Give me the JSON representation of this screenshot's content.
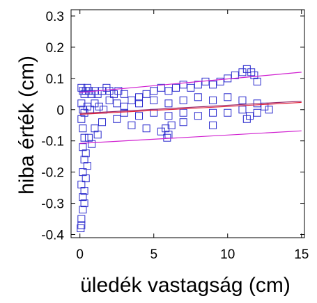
{
  "chart_data": {
    "type": "scatter",
    "xlabel": "üledék vastagság (cm)",
    "ylabel": "hiba érték (cm)",
    "xlim": [
      -0.6,
      15.2
    ],
    "ylim": [
      -0.41,
      0.32
    ],
    "xticks": [
      "0",
      "5",
      "10",
      "15"
    ],
    "yticks": [
      "-0.4",
      "-0.3",
      "-0.2",
      "-0.1",
      "0",
      "0.1",
      "0.2",
      "0.3"
    ],
    "grid": false,
    "series": [
      {
        "marker": "square",
        "color": "#2a2acd",
        "points": [
          [
            0.1,
            0.07
          ],
          [
            0.2,
            0.06
          ],
          [
            0.3,
            0.05
          ],
          [
            0.4,
            0.06
          ],
          [
            0.5,
            0.07
          ],
          [
            0.6,
            0.06
          ],
          [
            0.8,
            0.05
          ],
          [
            1.0,
            0.06
          ],
          [
            1.2,
            0.05
          ],
          [
            1.5,
            0.06
          ],
          [
            1.8,
            0.07
          ],
          [
            2.0,
            0.06
          ],
          [
            2.3,
            0.05
          ],
          [
            2.6,
            0.06
          ],
          [
            3.0,
            0.05
          ],
          [
            0.1,
            0.02
          ],
          [
            0.2,
            0.0
          ],
          [
            0.3,
            -0.01
          ],
          [
            0.5,
            0.01
          ],
          [
            0.7,
            0.0
          ],
          [
            1.0,
            0.02
          ],
          [
            1.3,
            0.01
          ],
          [
            1.6,
            0.0
          ],
          [
            2.0,
            0.03
          ],
          [
            2.5,
            0.02
          ],
          [
            3.0,
            0.01
          ],
          [
            3.5,
            0.03
          ],
          [
            4.0,
            0.04
          ],
          [
            4.5,
            0.05
          ],
          [
            5.0,
            0.06
          ],
          [
            5.5,
            0.07
          ],
          [
            6.0,
            0.06
          ],
          [
            6.5,
            0.07
          ],
          [
            7.0,
            0.08
          ],
          [
            7.5,
            0.07
          ],
          [
            8.0,
            0.08
          ],
          [
            8.5,
            0.09
          ],
          [
            9.0,
            0.08
          ],
          [
            9.5,
            0.09
          ],
          [
            10.0,
            0.1
          ],
          [
            10.5,
            0.11
          ],
          [
            11.0,
            0.12
          ],
          [
            11.3,
            0.13
          ],
          [
            11.6,
            0.12
          ],
          [
            11.8,
            0.11
          ],
          [
            12.0,
            0.09
          ],
          [
            4.0,
            0.02
          ],
          [
            5.0,
            0.03
          ],
          [
            6.0,
            0.02
          ],
          [
            7.0,
            0.03
          ],
          [
            8.0,
            0.04
          ],
          [
            9.0,
            0.03
          ],
          [
            10.0,
            0.04
          ],
          [
            11.0,
            0.03
          ],
          [
            12.0,
            0.02
          ],
          [
            12.5,
            0.01
          ],
          [
            12.8,
            0.0
          ],
          [
            3.0,
            -0.01
          ],
          [
            4.0,
            -0.02
          ],
          [
            5.0,
            -0.01
          ],
          [
            6.0,
            -0.02
          ],
          [
            7.0,
            -0.01
          ],
          [
            8.0,
            -0.02
          ],
          [
            9.0,
            -0.01
          ],
          [
            10.0,
            -0.01
          ],
          [
            11.0,
            0.0
          ],
          [
            12.0,
            -0.01
          ],
          [
            11.5,
            -0.02
          ],
          [
            1.5,
            -0.04
          ],
          [
            2.5,
            -0.03
          ],
          [
            3.5,
            -0.05
          ],
          [
            4.5,
            -0.06
          ],
          [
            5.5,
            -0.07
          ],
          [
            5.8,
            -0.06
          ],
          [
            6.0,
            -0.08
          ],
          [
            5.9,
            -0.09
          ],
          [
            6.2,
            -0.05
          ],
          [
            7.0,
            -0.04
          ],
          [
            9.0,
            -0.05
          ],
          [
            11.3,
            -0.03
          ],
          [
            0.1,
            -0.03
          ],
          [
            0.2,
            -0.06
          ],
          [
            0.3,
            -0.09
          ],
          [
            0.2,
            -0.12
          ],
          [
            0.4,
            -0.14
          ],
          [
            0.3,
            -0.16
          ],
          [
            0.5,
            -0.18
          ],
          [
            0.2,
            -0.2
          ],
          [
            0.4,
            -0.22
          ],
          [
            0.1,
            -0.24
          ],
          [
            0.3,
            -0.26
          ],
          [
            0.2,
            -0.28
          ],
          [
            0.3,
            -0.3
          ],
          [
            0.2,
            -0.32
          ],
          [
            0.1,
            -0.35
          ],
          [
            0.1,
            -0.37
          ],
          [
            0.05,
            -0.38
          ],
          [
            0.6,
            -0.09
          ],
          [
            0.8,
            -0.11
          ],
          [
            1.0,
            -0.06
          ],
          [
            1.2,
            -0.08
          ]
        ]
      },
      {
        "name": "",
        "type": "line",
        "color": "#e0203a",
        "x": [
          0,
          15
        ],
        "y": [
          -0.015,
          0.023
        ]
      },
      {
        "name": "",
        "type": "line",
        "color": "#9a2a6a",
        "x": [
          0,
          15
        ],
        "y": [
          -0.012,
          0.027
        ]
      },
      {
        "name": "",
        "type": "line",
        "color": "#d01fd0",
        "x": [
          0,
          15
        ],
        "y": [
          0.055,
          0.12
        ]
      },
      {
        "name": "",
        "type": "line",
        "color": "#d01fd0",
        "x": [
          0,
          15
        ],
        "y": [
          -0.108,
          -0.068
        ]
      }
    ]
  }
}
